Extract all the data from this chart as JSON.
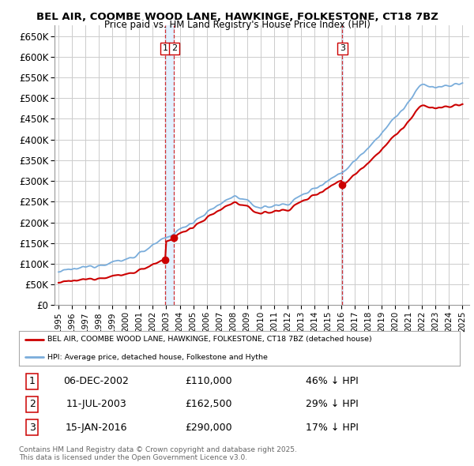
{
  "title_line1": "BEL AIR, COOMBE WOOD LANE, HAWKINGE, FOLKESTONE, CT18 7BZ",
  "title_line2": "Price paid vs. HM Land Registry's House Price Index (HPI)",
  "ylim": [
    0,
    675000
  ],
  "yticks": [
    0,
    50000,
    100000,
    150000,
    200000,
    250000,
    300000,
    350000,
    400000,
    450000,
    500000,
    550000,
    600000,
    650000
  ],
  "ytick_labels": [
    "£0",
    "£50K",
    "£100K",
    "£150K",
    "£200K",
    "£250K",
    "£300K",
    "£350K",
    "£400K",
    "£450K",
    "£500K",
    "£550K",
    "£600K",
    "£650K"
  ],
  "background_color": "#ffffff",
  "grid_color": "#cccccc",
  "sale_color": "#cc0000",
  "hpi_color": "#7aaddb",
  "shade_color": "#ddeeff",
  "sale_label": "BEL AIR, COOMBE WOOD LANE, HAWKINGE, FOLKESTONE, CT18 7BZ (detached house)",
  "hpi_label": "HPI: Average price, detached house, Folkestone and Hythe",
  "transactions": [
    {
      "num": 1,
      "date": "06-DEC-2002",
      "price": 110000,
      "pct": "46%"
    },
    {
      "num": 2,
      "date": "11-JUL-2003",
      "price": 162500,
      "pct": "29%"
    },
    {
      "num": 3,
      "date": "15-JAN-2016",
      "price": 290000,
      "pct": "17%"
    }
  ],
  "footer": "Contains HM Land Registry data © Crown copyright and database right 2025.\nThis data is licensed under the Open Government Licence v3.0.",
  "xtick_years": [
    1995,
    1996,
    1997,
    1998,
    1999,
    2000,
    2001,
    2002,
    2003,
    2004,
    2005,
    2006,
    2007,
    2008,
    2009,
    2010,
    2011,
    2012,
    2013,
    2014,
    2015,
    2016,
    2017,
    2018,
    2019,
    2020,
    2021,
    2022,
    2023,
    2024,
    2025
  ]
}
